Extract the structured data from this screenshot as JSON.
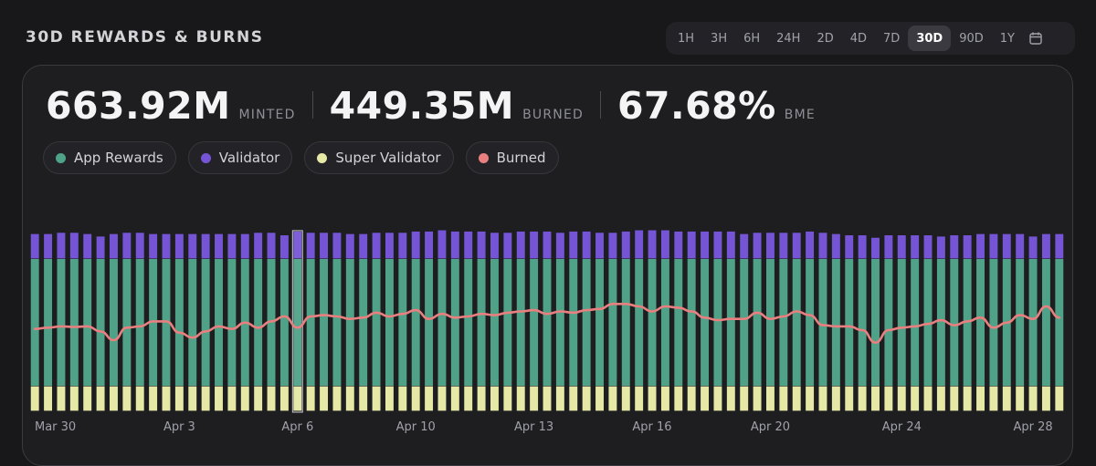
{
  "title": "30D REWARDS & BURNS",
  "ranges": [
    "1H",
    "3H",
    "6H",
    "24H",
    "2D",
    "4D",
    "7D",
    "30D",
    "90D",
    "1Y"
  ],
  "active_range": "30D",
  "calendar_icon": "calendar-icon",
  "stats": [
    {
      "value": "663.92M",
      "unit": "MINTED"
    },
    {
      "value": "449.35M",
      "unit": "BURNED"
    },
    {
      "value": "67.68%",
      "unit": "BME"
    }
  ],
  "legend": [
    {
      "label": "App Rewards",
      "color": "#4fa287"
    },
    {
      "label": "Validator",
      "color": "#7555d6"
    },
    {
      "label": "Super Validator",
      "color": "#e6e8a5"
    },
    {
      "label": "Burned",
      "color": "#ea7f7f"
    }
  ],
  "chart_data": {
    "type": "bar",
    "stacked": true,
    "x_tick_labels": [
      "Mar 30",
      "Apr 3",
      "Apr 6",
      "Apr 10",
      "Apr 13",
      "Apr 16",
      "Apr 20",
      "Apr 24",
      "Apr 28"
    ],
    "x_tick_bar_index": [
      0,
      11,
      20,
      29,
      38,
      47,
      56,
      66,
      76
    ],
    "highlighted_bar": 20,
    "series": [
      {
        "name": "Super Validator",
        "color": "#e6e8a5",
        "values": [
          1,
          1,
          1,
          1,
          1,
          1,
          1,
          1,
          1,
          1,
          1,
          1,
          1,
          1,
          1,
          1,
          1,
          1,
          1,
          1,
          1,
          1,
          1,
          1,
          1,
          1,
          1,
          1,
          1,
          1,
          1,
          1,
          1,
          1,
          1,
          1,
          1,
          1,
          1,
          1,
          1,
          1,
          1,
          1,
          1,
          1,
          1,
          1,
          1,
          1,
          1,
          1,
          1,
          1,
          1,
          1,
          1,
          1,
          1,
          1,
          1,
          1,
          1,
          1,
          1,
          1,
          1,
          1,
          1,
          1,
          1,
          1,
          1,
          1,
          1,
          1,
          1,
          1,
          1
        ]
      },
      {
        "name": "App Rewards",
        "color": "#4fa287",
        "values": [
          5.1,
          5.1,
          5.1,
          5.1,
          5.1,
          5.1,
          5.1,
          5.1,
          5.1,
          5.1,
          5.1,
          5.1,
          5.1,
          5.1,
          5.1,
          5.1,
          5.1,
          5.1,
          5.1,
          5.1,
          5.1,
          5.1,
          5.1,
          5.1,
          5.1,
          5.1,
          5.1,
          5.1,
          5.1,
          5.1,
          5.1,
          5.1,
          5.1,
          5.1,
          5.1,
          5.1,
          5.1,
          5.1,
          5.1,
          5.1,
          5.1,
          5.1,
          5.1,
          5.1,
          5.1,
          5.1,
          5.1,
          5.1,
          5.1,
          5.1,
          5.1,
          5.1,
          5.1,
          5.1,
          5.1,
          5.1,
          5.1,
          5.1,
          5.1,
          5.1,
          5.1,
          5.1,
          5.1,
          5.1,
          5.1,
          5.1,
          5.1,
          5.1,
          5.1,
          5.1,
          5.1,
          5.1,
          5.1,
          5.1,
          5.1,
          5.1,
          5.1,
          5.1,
          5.1
        ]
      },
      {
        "name": "Validator",
        "color": "#7555d6",
        "values": [
          1.0,
          1.0,
          1.05,
          1.05,
          1.0,
          0.9,
          1.0,
          1.05,
          1.05,
          1.0,
          1.0,
          1.0,
          1.0,
          1.0,
          1.0,
          1.0,
          1.0,
          1.05,
          1.05,
          0.95,
          1.1,
          1.05,
          1.05,
          1.05,
          1.0,
          1.0,
          1.05,
          1.05,
          1.05,
          1.1,
          1.1,
          1.15,
          1.1,
          1.1,
          1.1,
          1.05,
          1.05,
          1.1,
          1.1,
          1.1,
          1.05,
          1.1,
          1.1,
          1.05,
          1.05,
          1.1,
          1.15,
          1.15,
          1.15,
          1.1,
          1.1,
          1.1,
          1.1,
          1.1,
          1.0,
          1.05,
          1.05,
          1.05,
          1.05,
          1.1,
          1.05,
          1.0,
          0.95,
          0.95,
          0.85,
          0.95,
          0.95,
          0.95,
          0.95,
          0.9,
          0.95,
          0.95,
          1.0,
          1.0,
          1.0,
          1.0,
          0.9,
          1.0,
          1.0
        ]
      },
      {
        "name": "Burned",
        "color": "#ea7f7f",
        "type": "line",
        "values": [
          3.3,
          3.35,
          3.4,
          3.38,
          3.4,
          3.2,
          2.85,
          3.35,
          3.4,
          3.6,
          3.6,
          3.15,
          2.95,
          3.2,
          3.4,
          3.3,
          3.55,
          3.35,
          3.6,
          3.8,
          3.35,
          3.8,
          3.85,
          3.8,
          3.7,
          3.75,
          3.95,
          3.8,
          3.9,
          4.05,
          3.7,
          3.9,
          3.75,
          3.8,
          3.9,
          3.85,
          3.95,
          4.0,
          4.05,
          3.9,
          4.0,
          3.95,
          4.05,
          4.1,
          4.3,
          4.3,
          4.2,
          4.0,
          4.2,
          4.15,
          4.0,
          3.75,
          3.65,
          3.7,
          3.7,
          3.95,
          3.7,
          3.8,
          4.0,
          3.85,
          3.45,
          3.4,
          3.4,
          3.25,
          2.75,
          3.25,
          3.35,
          3.4,
          3.5,
          3.65,
          3.45,
          3.6,
          3.75,
          3.35,
          3.55,
          3.85,
          3.7,
          4.2,
          3.75
        ]
      }
    ],
    "ylim": [
      0,
      8
    ],
    "grid": false,
    "legend_position": "top-left"
  }
}
